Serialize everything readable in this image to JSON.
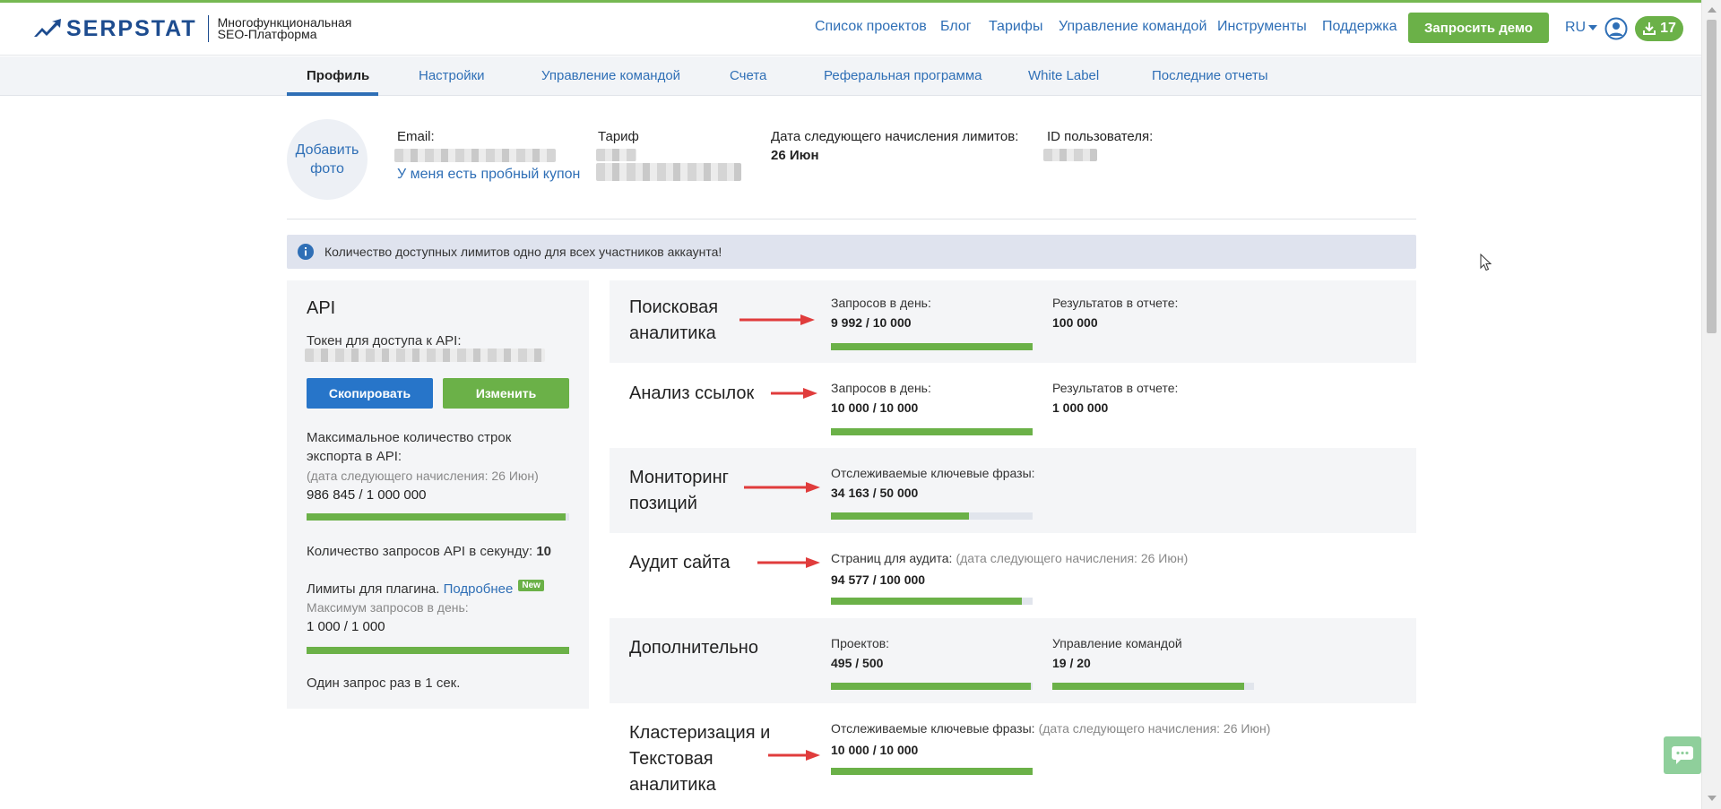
{
  "header": {
    "logo_text": "SERPSTAT",
    "tagline_line1": "Многофункциональная",
    "tagline_line2": "SEO-Платформа",
    "nav": [
      "Список проектов",
      "Блог",
      "Тарифы",
      "Управление командой",
      "Инструменты",
      "Поддержка"
    ],
    "demo_button": "Запросить демо",
    "language": "RU",
    "downloads_count": "17",
    "icons": {
      "user": "user-icon",
      "download": "download-icon",
      "lang_caret": "chevron-down-icon"
    }
  },
  "subnav": {
    "tabs": [
      "Профиль",
      "Настройки",
      "Управление командой",
      "Счета",
      "Реферальная программа",
      "White Label",
      "Последние отчеты"
    ],
    "active_tab": "Профиль"
  },
  "profile": {
    "add_photo_line1": "Добавить",
    "add_photo_line2": "фото",
    "email_label": "Email:",
    "coupon_link": "У меня есть пробный купон",
    "plan_label": "Тариф",
    "next_charge_label": "Дата следующего начисления лимитов:",
    "next_charge_value": "26 Июн",
    "user_id_label": "ID пользователя:"
  },
  "banner": {
    "icon": "info-icon",
    "text": "Количество доступных лимитов одно для всех участников аккаунта!"
  },
  "api": {
    "title": "API",
    "token_label": "Токен для доступа к API:",
    "copy_button": "Скопировать",
    "change_button": "Изменить",
    "max_rows_line1": "Максимальное количество строк",
    "max_rows_line2": "экспорта в API:",
    "max_rows_note": "(дата следующего начисления: 26 Июн)",
    "max_rows_value": "986 845 / 1 000 000",
    "max_rows_progress": 0.987,
    "rps_label": "Количество запросов API в секунду:",
    "rps_value": "10",
    "plugin_label": "Лимиты для плагина.",
    "plugin_link": "Подробнее",
    "plugin_badge": "New",
    "plugin_max_label": "Максимум запросов в день:",
    "plugin_value": "1 000 / 1 000",
    "plugin_progress": 1.0,
    "one_request": "Один запрос раз в 1 сек."
  },
  "sections": [
    {
      "title_line1": "Поисковая",
      "title_line2": "аналитика",
      "metrics": [
        {
          "label": "Запросов в день:",
          "value": "9 992 / 10 000",
          "progress": 0.9992
        },
        {
          "label": "Результатов в отчете:",
          "value": "100 000"
        }
      ]
    },
    {
      "title_line1": "Анализ ссылок",
      "metrics": [
        {
          "label": "Запросов в день:",
          "value": "10 000 / 10 000",
          "progress": 1.0
        },
        {
          "label": "Результатов в отчете:",
          "value": "1 000 000"
        }
      ]
    },
    {
      "title_line1": "Мониторинг",
      "title_line2": "позиций",
      "metrics": [
        {
          "label": "Отслеживаемые ключевые фразы:",
          "value": "34 163 / 50 000",
          "progress": 0.683
        }
      ]
    },
    {
      "title_line1": "Аудит сайта",
      "metrics": [
        {
          "label": "Страниц для аудита:",
          "note": "(дата следующего начисления: 26 Июн)",
          "value": "94 577 / 100 000",
          "progress": 0.946
        }
      ]
    },
    {
      "title_line1": "Дополнительно",
      "metrics": [
        {
          "label": "Проектов:",
          "value": "495 / 500",
          "progress": 0.99
        },
        {
          "label": "Управление командой",
          "value": "19 / 20",
          "progress": 0.95
        }
      ]
    },
    {
      "title_line1": "Кластеризация и",
      "title_line2": "Текстовая",
      "title_line3": "аналитика",
      "metrics": [
        {
          "label": "Отслеживаемые ключевые фразы:",
          "note": "(дата следующего начисления: 26 Июн)",
          "value": "10 000 / 10 000",
          "progress": 1.0
        }
      ]
    }
  ],
  "colors": {
    "accent_green": "#6bb148",
    "link_blue": "#2f6fb6",
    "button_blue": "#2775c9",
    "annotation_arrow": "#e03c3c"
  }
}
